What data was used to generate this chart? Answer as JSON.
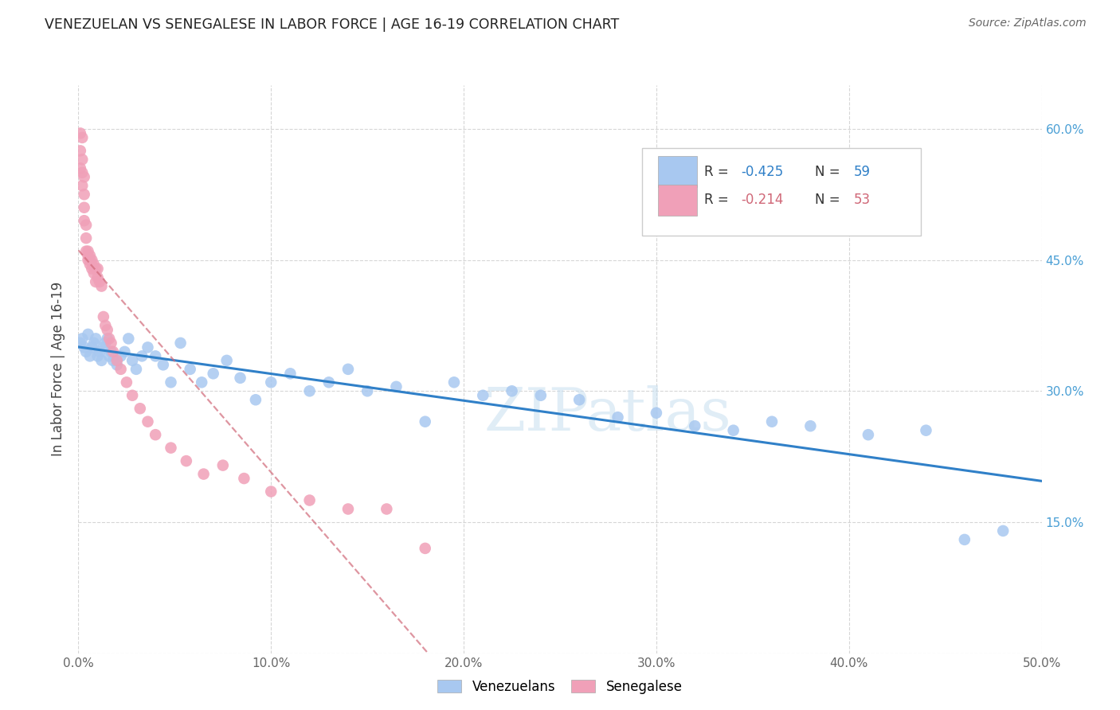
{
  "title": "VENEZUELAN VS SENEGALESE IN LABOR FORCE | AGE 16-19 CORRELATION CHART",
  "source": "Source: ZipAtlas.com",
  "ylabel": "In Labor Force | Age 16-19",
  "xlim": [
    0.0,
    0.5
  ],
  "ylim": [
    0.0,
    0.65
  ],
  "xticks": [
    0.0,
    0.1,
    0.2,
    0.3,
    0.4,
    0.5
  ],
  "yticks": [
    0.0,
    0.15,
    0.3,
    0.45,
    0.6
  ],
  "xtick_labels": [
    "0.0%",
    "10.0%",
    "20.0%",
    "30.0%",
    "40.0%",
    "50.0%"
  ],
  "ytick_labels_right": [
    "",
    "15.0%",
    "30.0%",
    "45.0%",
    "60.0%"
  ],
  "venezuelan_color": "#a8c8f0",
  "senegalese_color": "#f0a0b8",
  "venezuelan_trend_color": "#3080c8",
  "senegalese_trend_color": "#d06878",
  "r_venezuelan": -0.425,
  "n_venezuelan": 59,
  "r_senegalese": -0.214,
  "n_senegalese": 53,
  "watermark": "ZIPatlas",
  "venezuelan_x": [
    0.001,
    0.002,
    0.003,
    0.004,
    0.005,
    0.006,
    0.007,
    0.008,
    0.009,
    0.01,
    0.011,
    0.012,
    0.013,
    0.014,
    0.015,
    0.016,
    0.017,
    0.018,
    0.02,
    0.022,
    0.024,
    0.026,
    0.028,
    0.03,
    0.033,
    0.036,
    0.04,
    0.044,
    0.048,
    0.053,
    0.058,
    0.064,
    0.07,
    0.077,
    0.084,
    0.092,
    0.1,
    0.11,
    0.12,
    0.13,
    0.14,
    0.15,
    0.165,
    0.18,
    0.195,
    0.21,
    0.225,
    0.24,
    0.26,
    0.28,
    0.3,
    0.32,
    0.34,
    0.36,
    0.38,
    0.41,
    0.44,
    0.46,
    0.48
  ],
  "venezuelan_y": [
    0.355,
    0.36,
    0.35,
    0.345,
    0.365,
    0.34,
    0.35,
    0.355,
    0.36,
    0.34,
    0.345,
    0.335,
    0.35,
    0.355,
    0.36,
    0.34,
    0.345,
    0.335,
    0.33,
    0.34,
    0.345,
    0.36,
    0.335,
    0.325,
    0.34,
    0.35,
    0.34,
    0.33,
    0.31,
    0.355,
    0.325,
    0.31,
    0.32,
    0.335,
    0.315,
    0.29,
    0.31,
    0.32,
    0.3,
    0.31,
    0.325,
    0.3,
    0.305,
    0.265,
    0.31,
    0.295,
    0.3,
    0.295,
    0.29,
    0.27,
    0.275,
    0.26,
    0.255,
    0.265,
    0.26,
    0.25,
    0.255,
    0.13,
    0.14
  ],
  "senegalese_x": [
    0.001,
    0.001,
    0.001,
    0.002,
    0.002,
    0.002,
    0.002,
    0.003,
    0.003,
    0.003,
    0.003,
    0.004,
    0.004,
    0.004,
    0.005,
    0.005,
    0.005,
    0.006,
    0.006,
    0.006,
    0.007,
    0.007,
    0.008,
    0.008,
    0.009,
    0.009,
    0.01,
    0.01,
    0.011,
    0.012,
    0.013,
    0.014,
    0.015,
    0.016,
    0.017,
    0.018,
    0.02,
    0.022,
    0.025,
    0.028,
    0.032,
    0.036,
    0.04,
    0.048,
    0.056,
    0.065,
    0.075,
    0.086,
    0.1,
    0.12,
    0.14,
    0.16,
    0.18
  ],
  "senegalese_y": [
    0.595,
    0.575,
    0.555,
    0.59,
    0.565,
    0.55,
    0.535,
    0.545,
    0.525,
    0.51,
    0.495,
    0.49,
    0.475,
    0.46,
    0.46,
    0.455,
    0.45,
    0.455,
    0.45,
    0.445,
    0.45,
    0.44,
    0.445,
    0.435,
    0.44,
    0.425,
    0.44,
    0.43,
    0.425,
    0.42,
    0.385,
    0.375,
    0.37,
    0.36,
    0.355,
    0.345,
    0.335,
    0.325,
    0.31,
    0.295,
    0.28,
    0.265,
    0.25,
    0.235,
    0.22,
    0.205,
    0.215,
    0.2,
    0.185,
    0.175,
    0.165,
    0.165,
    0.12
  ]
}
